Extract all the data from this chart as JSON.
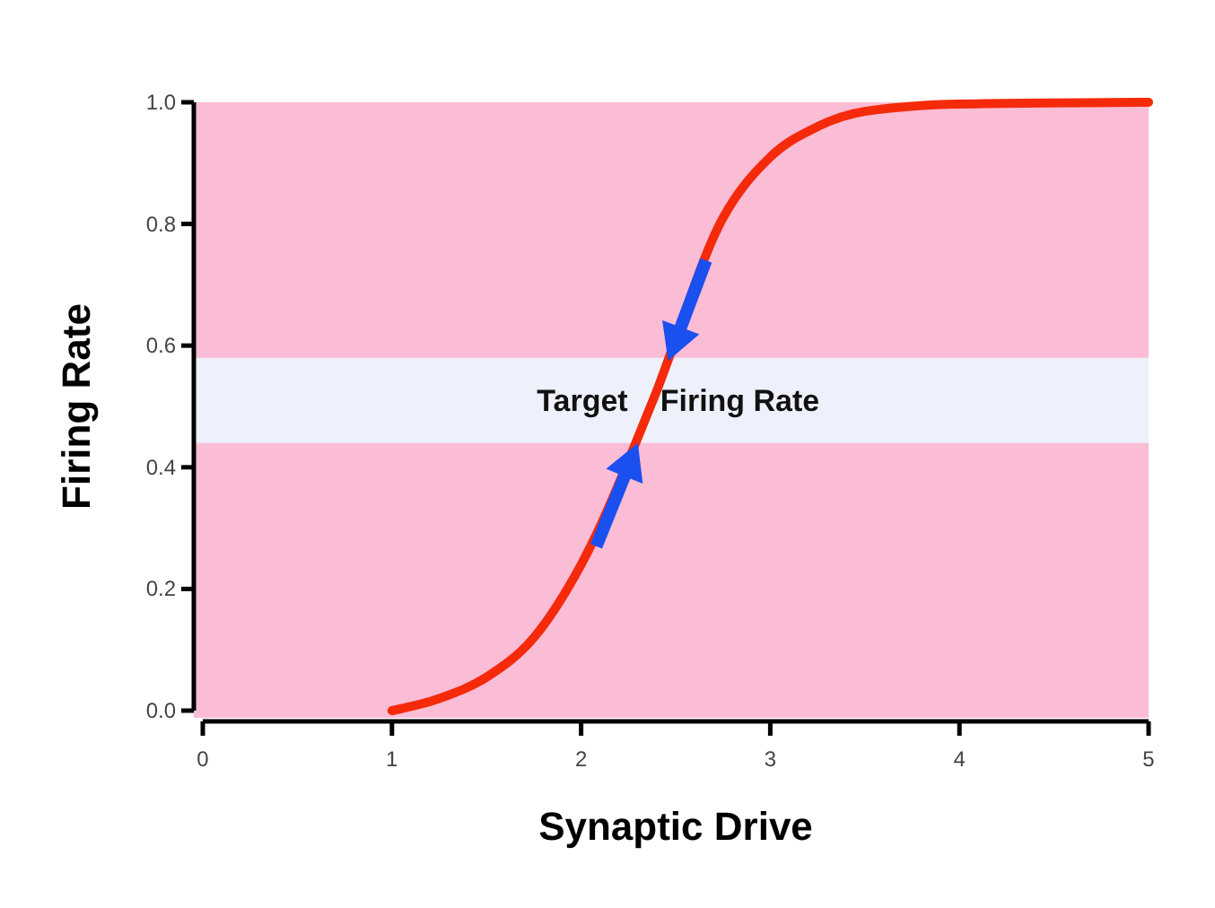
{
  "chart_data": {
    "type": "line",
    "xlabel": "Synaptic Drive",
    "ylabel": "Firing Rate",
    "xlim": [
      0,
      5
    ],
    "xticks": [
      0,
      1,
      2,
      3,
      4,
      5
    ],
    "ylim": [
      0,
      1
    ],
    "yticks": [
      {
        "value": 0,
        "label": "0.0"
      },
      {
        "value": 0.2,
        "label": "0.2"
      },
      {
        "value": 0.4,
        "label": "0.4"
      },
      {
        "value": 0.6,
        "label": "0.6"
      },
      {
        "value": 0.8,
        "label": "0.8"
      },
      {
        "value": 1,
        "label": "1.0"
      }
    ],
    "x": [
      1,
      1.25,
      1.5,
      1.75,
      2,
      2.38,
      2.75,
      3,
      3.25,
      3.5,
      4,
      5
    ],
    "series": [
      {
        "color": "#f52a0a",
        "values": [
          0,
          0.02,
          0.055,
          0.12,
          0.24,
          0.51,
          0.81,
          0.91,
          0.96,
          0.985,
          0.997,
          1
        ]
      }
    ],
    "bands": [
      {
        "axis": "y",
        "from": 0.44,
        "to": 0.58,
        "label": "Target Firing Rate",
        "color": "#eef0fb"
      }
    ],
    "marker": "none",
    "line_style": "solid"
  }
}
